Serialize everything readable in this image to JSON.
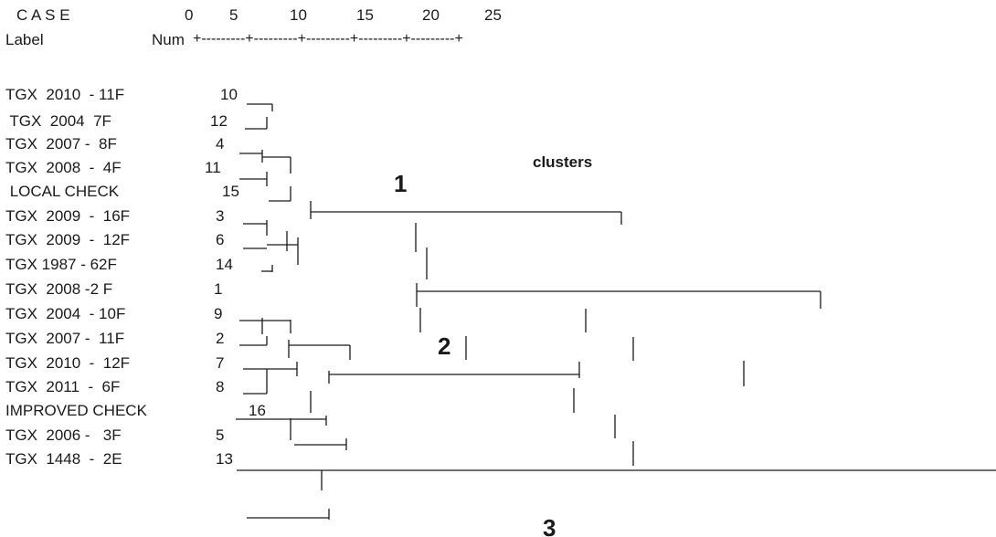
{
  "header": {
    "case_label": "C A S E",
    "label_col": "Label",
    "num_col": "Num",
    "scale_ticks": [
      "0",
      "5",
      "10",
      "15",
      "20",
      "25"
    ],
    "scale_rule": "+---------+---------+---------+---------+---------+"
  },
  "cases": [
    {
      "label": "TGX  2010  - 11F",
      "num": "10"
    },
    {
      "label": " TGX  2004  7F",
      "num": "12"
    },
    {
      "label": "TGX  2007 -  8F",
      "num": "4"
    },
    {
      "label": "TGX  2008  -  4F",
      "num": "11"
    },
    {
      "label": " LOCAL CHECK",
      "num": "15"
    },
    {
      "label": "TGX  2009  -  16F",
      "num": "3"
    },
    {
      "label": "TGX  2009  -  12F",
      "num": "6"
    },
    {
      "label": "TGX 1987 - 62F",
      "num": "14"
    },
    {
      "label": "TGX  2008 -2 F",
      "num": "1"
    },
    {
      "label": "TGX  2004  - 10F",
      "num": "9"
    },
    {
      "label": "TGX  2007 -  11F",
      "num": "2"
    },
    {
      "label": "TGX  2010  -  12F",
      "num": "7"
    },
    {
      "label": "TGX  2011  -  6F",
      "num": "8"
    },
    {
      "label": "IMPROVED CHECK",
      "num": "16"
    },
    {
      "label": "TGX  2006 -   3F",
      "num": "5"
    },
    {
      "label": "TGX  1448  -  2E",
      "num": "13"
    }
  ],
  "annotations": {
    "clusters": "clusters",
    "c1": "1",
    "c2": "2",
    "c3": "3"
  }
}
